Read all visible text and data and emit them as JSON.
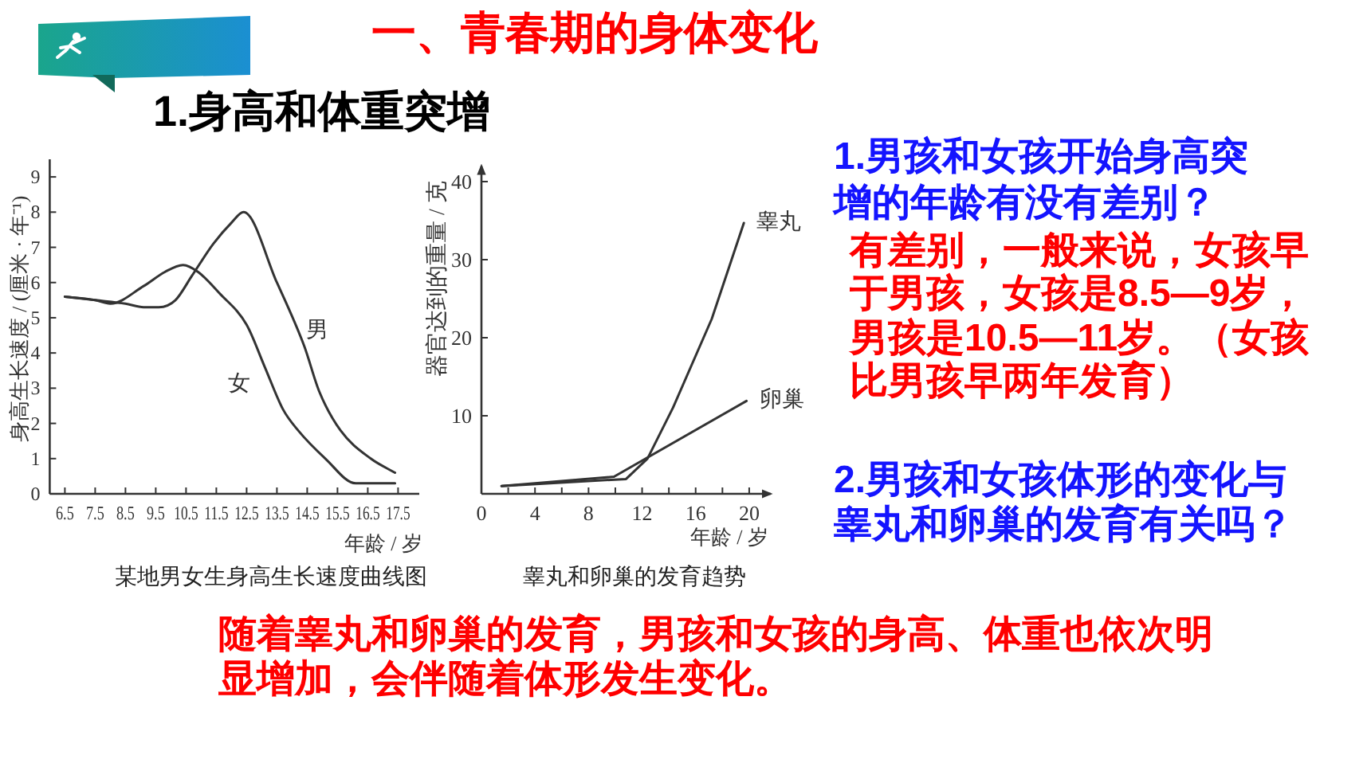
{
  "chart_data": [
    {
      "type": "line",
      "title": "某地男女生身高生长速度曲线图",
      "xlabel": "年龄 / 岁",
      "ylabel": "身高生长速度 / (厘米 · 年⁻¹)",
      "xlim": [
        6,
        18.2
      ],
      "xticks": [
        6.5,
        7.5,
        8.5,
        9.5,
        10.5,
        11.5,
        12.5,
        13.5,
        14.5,
        15.5,
        16.5,
        17.5
      ],
      "ylim": [
        0,
        9.5
      ],
      "yticks": [
        0,
        1,
        2,
        3,
        4,
        5,
        6,
        7,
        8,
        9
      ],
      "series": [
        {
          "name": "男",
          "color": "#333333",
          "x": [
            6.5,
            7.5,
            8.5,
            9.1,
            9.6,
            10.15,
            10.7,
            11.4,
            12.0,
            12.4,
            13.5,
            14.4,
            14.9,
            15.6,
            16.6,
            17.4
          ],
          "values": [
            5.6,
            5.5,
            5.4,
            5.3,
            5.3,
            5.5,
            6.2,
            7.1,
            7.7,
            8.0,
            6.0,
            4.2,
            2.9,
            1.8,
            1.0,
            0.6
          ]
        },
        {
          "name": "女",
          "color": "#333333",
          "x": [
            6.5,
            7.5,
            8.0,
            9.1,
            9.8,
            10.4,
            10.9,
            11.6,
            12.5,
            13.1,
            13.7,
            14.2,
            15.1,
            16.1,
            17.4
          ],
          "values": [
            5.6,
            5.5,
            5.4,
            5.9,
            6.3,
            6.5,
            6.3,
            5.7,
            4.8,
            3.6,
            2.4,
            1.8,
            1.0,
            0.3,
            0.3
          ]
        }
      ]
    },
    {
      "type": "line",
      "title": "睾丸和卵巢的发育趋势",
      "xlabel": "年龄 / 岁",
      "ylabel": "器官达到的重量 / 克",
      "xlim": [
        0,
        21.6
      ],
      "xticks": [
        0,
        {
          "value": 2,
          "label": null
        },
        4,
        {
          "value": 6,
          "label": null
        },
        8,
        {
          "value": 10,
          "label": null
        },
        12,
        {
          "value": 14,
          "label": null
        },
        16,
        {
          "value": 18,
          "label": null
        },
        20
      ],
      "ylim": [
        0,
        42
      ],
      "yticks": [
        10,
        20,
        30,
        40
      ],
      "series": [
        {
          "name": "睾丸",
          "color": "#333333",
          "x": [
            1.5,
            10.8,
            12.4,
            14.3,
            17.2,
            19.6
          ],
          "values": [
            1.0,
            1.9,
            4.5,
            11.0,
            22.4,
            34.7
          ]
        },
        {
          "name": "卵巢",
          "color": "#333333",
          "x": [
            1.5,
            9.9,
            19.8
          ],
          "values": [
            1.0,
            2.2,
            11.9
          ]
        }
      ]
    },
    {
      "type": "other",
      "title": "一、青春期的身体变化",
      "subtitle": "1.身高和体重突增",
      "annotations": [
        "1.男孩和女孩开始身高突增的年龄有没有差别？",
        "有差别，一般来说，女孩早于男孩，女孩是8.5—9岁，男孩是10.5—11岁。（女孩比男孩早两年发育）",
        "2.男孩和女孩体形的变化与睾丸和卵巢的发育有关吗？",
        "随着睾丸和卵巢的发育，男孩和女孩的身高、体重也依次明显增加，会伴随着体形发生变化。"
      ]
    }
  ]
}
